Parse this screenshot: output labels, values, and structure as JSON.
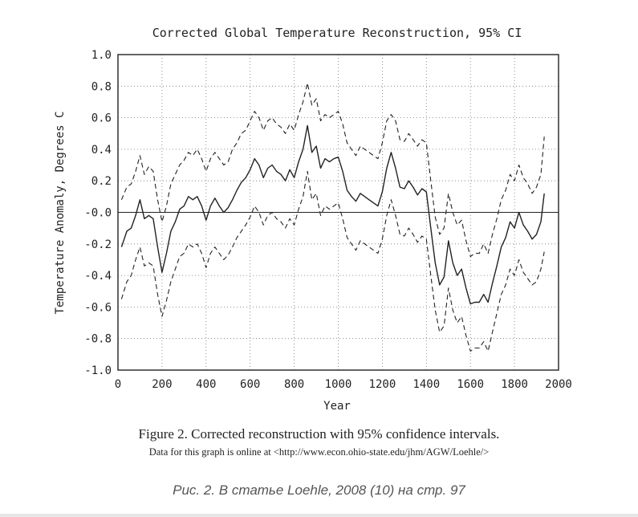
{
  "chart_data": {
    "type": "line",
    "title": "Corrected Global Temperature Reconstruction, 95% CI",
    "xlabel": "Year",
    "ylabel": "Temperature Anomaly, Degrees C",
    "xlim": [
      0,
      2000
    ],
    "ylim": [
      -1.0,
      1.0
    ],
    "xticks": [
      "0",
      "200",
      "400",
      "600",
      "800",
      "1000",
      "1200",
      "1400",
      "1600",
      "1800",
      "2000"
    ],
    "yticks": [
      "1.0",
      "0.8",
      "0.6",
      "0.4",
      "0.2",
      "-0.0",
      "-0.2",
      "-0.4",
      "-0.6",
      "-0.8",
      "-1.0"
    ],
    "grid": true,
    "x": [
      16,
      40,
      60,
      80,
      100,
      120,
      140,
      160,
      180,
      200,
      220,
      240,
      260,
      280,
      300,
      320,
      340,
      360,
      380,
      400,
      420,
      440,
      460,
      480,
      500,
      520,
      540,
      560,
      580,
      600,
      620,
      640,
      660,
      680,
      700,
      720,
      740,
      760,
      780,
      800,
      820,
      840,
      860,
      880,
      900,
      920,
      940,
      960,
      980,
      1000,
      1020,
      1040,
      1060,
      1080,
      1100,
      1120,
      1140,
      1160,
      1180,
      1200,
      1220,
      1240,
      1260,
      1280,
      1300,
      1320,
      1340,
      1360,
      1380,
      1400,
      1420,
      1440,
      1460,
      1480,
      1500,
      1520,
      1540,
      1560,
      1580,
      1600,
      1620,
      1640,
      1660,
      1680,
      1700,
      1720,
      1740,
      1760,
      1780,
      1800,
      1820,
      1840,
      1860,
      1880,
      1900,
      1920,
      1935
    ],
    "series": [
      {
        "style": "solid",
        "values": [
          -0.22,
          -0.12,
          -0.1,
          -0.02,
          0.08,
          -0.04,
          -0.02,
          -0.04,
          -0.22,
          -0.38,
          -0.26,
          -0.12,
          -0.06,
          0.02,
          0.04,
          0.1,
          0.08,
          0.1,
          0.04,
          -0.05,
          0.04,
          0.09,
          0.04,
          0.0,
          0.03,
          0.08,
          0.14,
          0.19,
          0.22,
          0.27,
          0.34,
          0.3,
          0.22,
          0.28,
          0.3,
          0.26,
          0.24,
          0.2,
          0.27,
          0.22,
          0.32,
          0.4,
          0.55,
          0.38,
          0.42,
          0.28,
          0.34,
          0.32,
          0.34,
          0.35,
          0.26,
          0.14,
          0.1,
          0.07,
          0.12,
          0.1,
          0.08,
          0.06,
          0.04,
          0.13,
          0.28,
          0.38,
          0.28,
          0.16,
          0.15,
          0.2,
          0.16,
          0.11,
          0.15,
          0.13,
          -0.1,
          -0.32,
          -0.46,
          -0.41,
          -0.18,
          -0.32,
          -0.4,
          -0.36,
          -0.48,
          -0.58,
          -0.57,
          -0.57,
          -0.52,
          -0.57,
          -0.45,
          -0.34,
          -0.22,
          -0.16,
          -0.06,
          -0.1,
          0.0,
          -0.08,
          -0.12,
          -0.17,
          -0.14,
          -0.06,
          0.12
        ]
      },
      {
        "style": "dashed",
        "values": [
          0.08,
          0.16,
          0.18,
          0.26,
          0.36,
          0.24,
          0.29,
          0.26,
          0.08,
          -0.06,
          0.04,
          0.18,
          0.24,
          0.3,
          0.33,
          0.38,
          0.36,
          0.4,
          0.34,
          0.26,
          0.34,
          0.38,
          0.34,
          0.3,
          0.32,
          0.4,
          0.44,
          0.5,
          0.52,
          0.58,
          0.64,
          0.6,
          0.52,
          0.58,
          0.6,
          0.56,
          0.54,
          0.5,
          0.56,
          0.52,
          0.62,
          0.7,
          0.82,
          0.68,
          0.72,
          0.58,
          0.62,
          0.6,
          0.62,
          0.64,
          0.56,
          0.44,
          0.4,
          0.36,
          0.42,
          0.4,
          0.38,
          0.36,
          0.34,
          0.44,
          0.58,
          0.62,
          0.58,
          0.46,
          0.45,
          0.5,
          0.46,
          0.42,
          0.46,
          0.44,
          0.2,
          -0.03,
          -0.14,
          -0.1,
          0.12,
          0.0,
          -0.08,
          -0.05,
          -0.18,
          -0.28,
          -0.26,
          -0.26,
          -0.2,
          -0.26,
          -0.14,
          -0.04,
          0.08,
          0.14,
          0.24,
          0.2,
          0.3,
          0.22,
          0.18,
          0.12,
          0.16,
          0.24,
          0.48
        ]
      },
      {
        "style": "dashed",
        "values": [
          -0.55,
          -0.44,
          -0.4,
          -0.3,
          -0.22,
          -0.34,
          -0.32,
          -0.34,
          -0.52,
          -0.66,
          -0.56,
          -0.44,
          -0.36,
          -0.28,
          -0.26,
          -0.2,
          -0.22,
          -0.2,
          -0.26,
          -0.35,
          -0.26,
          -0.22,
          -0.26,
          -0.3,
          -0.27,
          -0.22,
          -0.16,
          -0.12,
          -0.08,
          -0.03,
          0.04,
          0.0,
          -0.08,
          -0.02,
          0.0,
          -0.04,
          -0.06,
          -0.1,
          -0.04,
          -0.08,
          0.02,
          0.1,
          0.26,
          0.08,
          0.12,
          -0.02,
          0.04,
          0.02,
          0.04,
          0.06,
          -0.04,
          -0.16,
          -0.2,
          -0.24,
          -0.18,
          -0.2,
          -0.22,
          -0.24,
          -0.26,
          -0.17,
          -0.02,
          0.08,
          -0.02,
          -0.14,
          -0.15,
          -0.1,
          -0.14,
          -0.19,
          -0.15,
          -0.17,
          -0.4,
          -0.62,
          -0.76,
          -0.72,
          -0.48,
          -0.62,
          -0.7,
          -0.66,
          -0.78,
          -0.88,
          -0.86,
          -0.86,
          -0.82,
          -0.88,
          -0.76,
          -0.64,
          -0.52,
          -0.46,
          -0.36,
          -0.4,
          -0.3,
          -0.38,
          -0.42,
          -0.46,
          -0.44,
          -0.36,
          -0.25
        ]
      }
    ]
  },
  "captions": {
    "figure": "Figure 2. Corrected reconstruction with 95% confidence intervals.",
    "data_note": "Data for this graph is online at <http://www.econ.ohio-state.edu/jhm/AGW/Loehle/>",
    "source": "Рис. 2. В статье Loehle, 2008 (10) на стр. 97"
  }
}
